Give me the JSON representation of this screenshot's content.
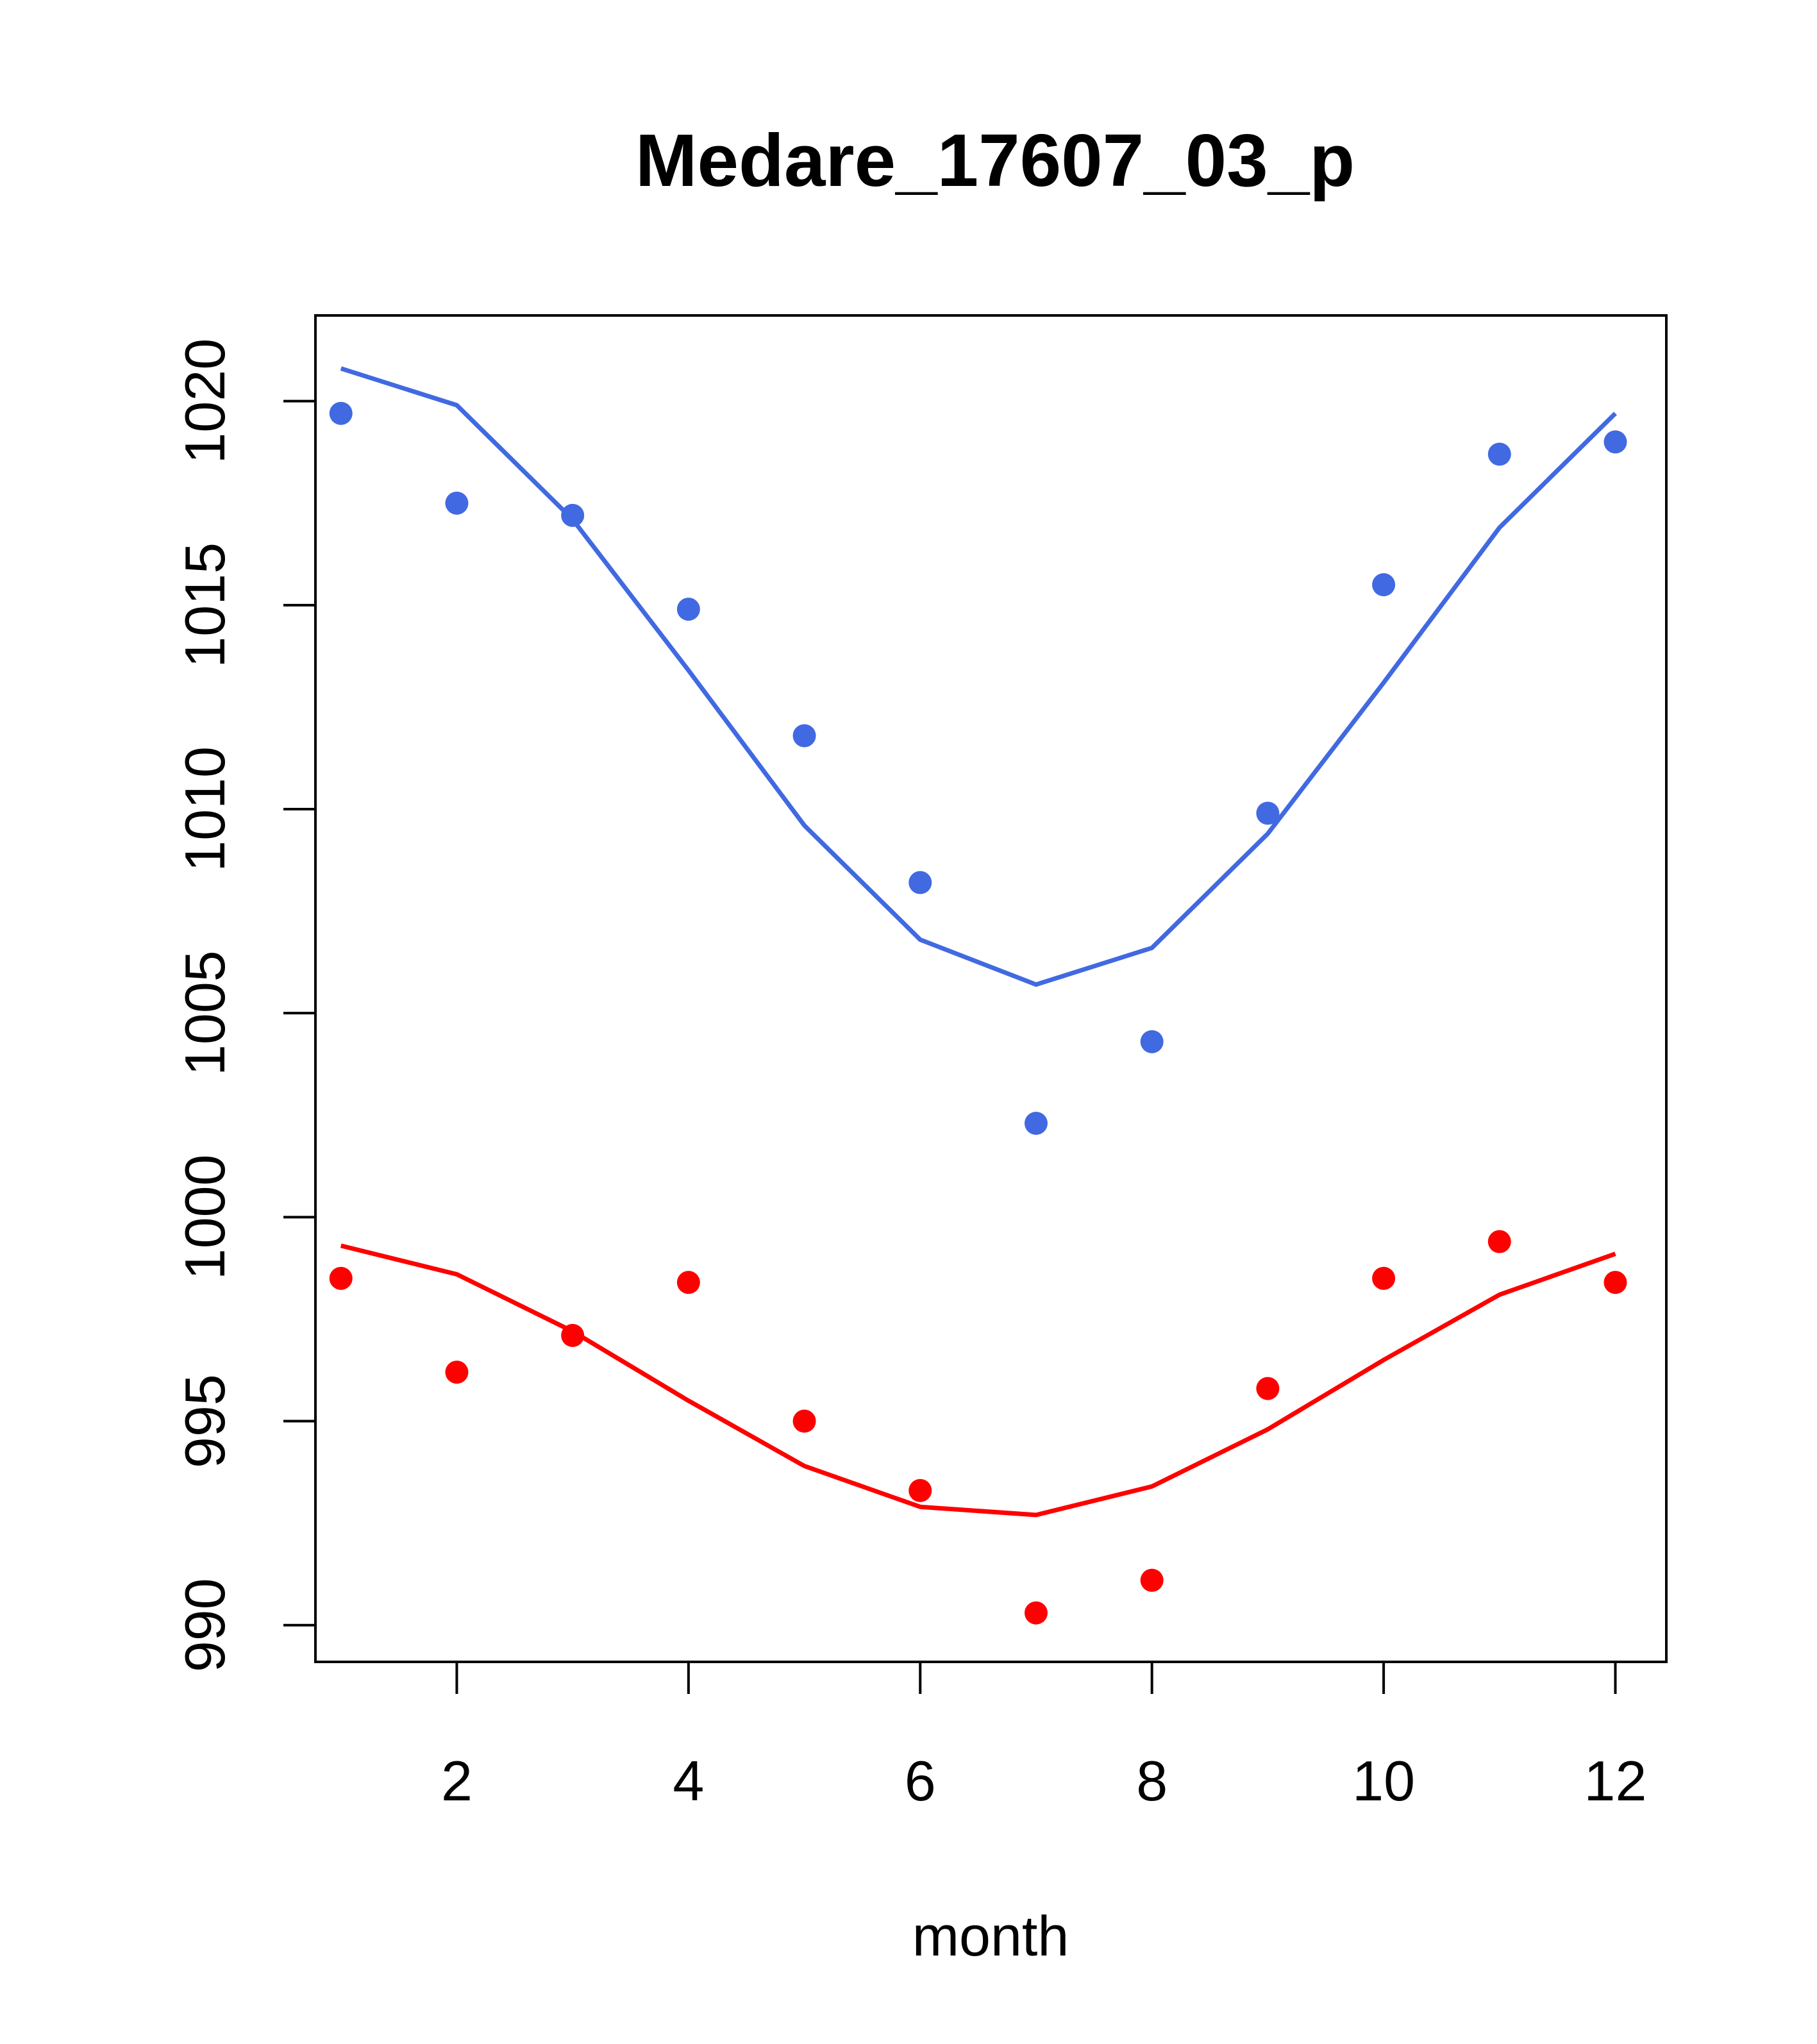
{
  "chart_data": {
    "type": "scatter",
    "title": "Medare_17607_03_p",
    "xlabel": "month",
    "ylabel": "",
    "xlim": [
      0.78,
      12.44
    ],
    "ylim": [
      989.1,
      1022.1
    ],
    "xticks": [
      2,
      4,
      6,
      8,
      10,
      12
    ],
    "yticks": [
      990,
      995,
      1000,
      1005,
      1010,
      1015,
      1020
    ],
    "grid": false,
    "legend": "none",
    "x": [
      1,
      2,
      3,
      4,
      5,
      6,
      7,
      8,
      9,
      10,
      11,
      12
    ],
    "series": [
      {
        "color": "#4169E1",
        "points": [
          1019.7,
          1017.5,
          1017.2,
          1014.9,
          1011.8,
          1008.2,
          1002.3,
          1004.3,
          1009.9,
          1015.5,
          1018.7,
          1019.0
        ],
        "fit": [
          1020.8,
          1019.9,
          1017.1,
          1013.4,
          1009.6,
          1006.8,
          1005.7,
          1006.6,
          1009.4,
          1013.1,
          1016.9,
          1019.7
        ]
      },
      {
        "color": "#FF0000",
        "points": [
          998.5,
          996.2,
          997.1,
          998.4,
          995.0,
          993.3,
          990.3,
          991.1,
          995.8,
          998.5,
          999.4,
          998.4
        ],
        "fit": [
          999.3,
          998.6,
          997.2,
          995.5,
          993.9,
          992.9,
          992.7,
          993.4,
          994.8,
          996.5,
          998.1,
          999.1
        ]
      }
    ]
  }
}
